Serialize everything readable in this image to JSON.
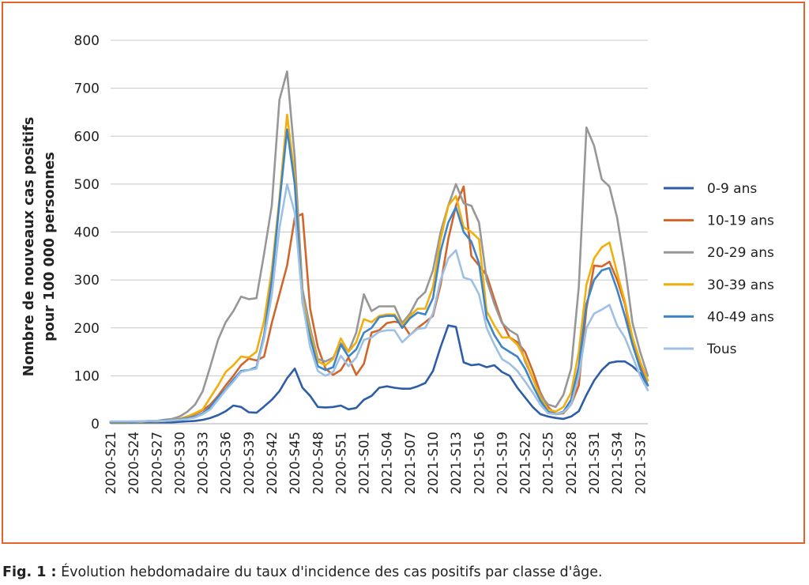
{
  "caption": {
    "label": "Fig. 1 :",
    "text": " Évolution hebdomadaire du taux d'incidence des cas positifs par classe d'âge."
  },
  "chart_data": {
    "type": "line",
    "title": "",
    "ylabel_line1": "Nombre de nouveaux cas positifs",
    "ylabel_line2": "pour 100 000 personnes",
    "xlabel": "",
    "ylim": [
      0,
      800
    ],
    "yticks": [
      0,
      100,
      200,
      300,
      400,
      500,
      600,
      700,
      800
    ],
    "grid": "horizontal",
    "legend_position": "right",
    "x": [
      "2020-S21",
      "2020-S22",
      "2020-S23",
      "2020-S24",
      "2020-S25",
      "2020-S26",
      "2020-S27",
      "2020-S28",
      "2020-S29",
      "2020-S30",
      "2020-S31",
      "2020-S32",
      "2020-S33",
      "2020-S34",
      "2020-S35",
      "2020-S36",
      "2020-S37",
      "2020-S38",
      "2020-S39",
      "2020-S40",
      "2020-S41",
      "2020-S42",
      "2020-S43",
      "2020-S44",
      "2020-S45",
      "2020-S46",
      "2020-S47",
      "2020-S48",
      "2020-S49",
      "2020-S50",
      "2020-S51",
      "2020-S52",
      "2020-S53",
      "2021-S01",
      "2021-S02",
      "2021-S03",
      "2021-S04",
      "2021-S05",
      "2021-S06",
      "2021-S07",
      "2021-S08",
      "2021-S09",
      "2021-S10",
      "2021-S11",
      "2021-S12",
      "2021-S13",
      "2021-S14",
      "2021-S15",
      "2021-S16",
      "2021-S17",
      "2021-S18",
      "2021-S19",
      "2021-S20",
      "2021-S21",
      "2021-S22",
      "2021-S23",
      "2021-S24",
      "2021-S25",
      "2021-S26",
      "2021-S27",
      "2021-S28",
      "2021-S29",
      "2021-S30",
      "2021-S31",
      "2021-S32",
      "2021-S33",
      "2021-S34",
      "2021-S35",
      "2021-S36",
      "2021-S37",
      "2021-S38"
    ],
    "xtick_labels": [
      "2020-S21",
      "2020-S24",
      "2020-S27",
      "2020-S30",
      "2020-S33",
      "2020-S36",
      "2020-S39",
      "2020-S42",
      "2020-S45",
      "2020-S48",
      "2020-S51",
      "2021-S01",
      "2021-S04",
      "2021-S07",
      "2021-S10",
      "2021-S13",
      "2021-S16",
      "2021-S19",
      "2021-S22",
      "2021-S25",
      "2021-S28",
      "2021-S31",
      "2021-S34",
      "2021-S37"
    ],
    "series": [
      {
        "name": "0-9 ans",
        "color": "#2e5da8",
        "values": [
          2,
          2,
          2,
          3,
          3,
          3,
          3,
          3,
          3,
          4,
          5,
          6,
          8,
          12,
          18,
          26,
          38,
          35,
          24,
          23,
          36,
          50,
          68,
          95,
          115,
          75,
          58,
          35,
          34,
          35,
          38,
          30,
          33,
          50,
          58,
          75,
          78,
          75,
          73,
          73,
          78,
          85,
          110,
          160,
          205,
          202,
          128,
          122,
          124,
          118,
          122,
          108,
          100,
          75,
          55,
          35,
          20,
          15,
          12,
          10,
          15,
          26,
          60,
          90,
          112,
          127,
          130,
          130,
          120,
          105,
          80
        ]
      },
      {
        "name": "10-19 ans",
        "color": "#d2662a",
        "values": [
          3,
          3,
          3,
          4,
          4,
          5,
          5,
          6,
          7,
          10,
          15,
          20,
          28,
          40,
          58,
          80,
          100,
          122,
          136,
          132,
          140,
          210,
          270,
          330,
          430,
          438,
          240,
          160,
          115,
          102,
          112,
          138,
          102,
          125,
          190,
          195,
          210,
          213,
          210,
          185,
          200,
          212,
          225,
          290,
          385,
          455,
          495,
          350,
          330,
          310,
          260,
          212,
          180,
          170,
          150,
          110,
          65,
          35,
          20,
          22,
          40,
          80,
          240,
          330,
          328,
          338,
          300,
          250,
          170,
          120,
          80
        ]
      },
      {
        "name": "20-29 ans",
        "color": "#979797",
        "values": [
          4,
          4,
          4,
          5,
          5,
          6,
          6,
          8,
          10,
          15,
          25,
          40,
          68,
          120,
          175,
          212,
          235,
          265,
          260,
          262,
          355,
          455,
          676,
          735,
          555,
          280,
          200,
          135,
          130,
          138,
          168,
          150,
          190,
          270,
          235,
          245,
          245,
          245,
          210,
          230,
          260,
          275,
          320,
          400,
          455,
          500,
          460,
          455,
          420,
          300,
          250,
          210,
          195,
          185,
          130,
          95,
          60,
          40,
          35,
          60,
          115,
          285,
          618,
          580,
          510,
          495,
          430,
          330,
          210,
          150,
          100
        ]
      },
      {
        "name": "30-39 ans",
        "color": "#f1ae0c",
        "values": [
          3,
          3,
          3,
          4,
          4,
          5,
          5,
          6,
          7,
          10,
          15,
          22,
          30,
          55,
          80,
          108,
          122,
          140,
          138,
          150,
          215,
          320,
          470,
          645,
          515,
          260,
          190,
          130,
          122,
          135,
          178,
          150,
          170,
          218,
          212,
          225,
          228,
          228,
          205,
          225,
          240,
          240,
          285,
          385,
          455,
          475,
          410,
          400,
          385,
          235,
          205,
          180,
          180,
          165,
          135,
          95,
          55,
          30,
          25,
          35,
          65,
          150,
          290,
          345,
          368,
          378,
          315,
          255,
          180,
          130,
          90
        ]
      },
      {
        "name": "40-49 ans",
        "color": "#3d85c6",
        "values": [
          4,
          4,
          4,
          4,
          5,
          5,
          6,
          7,
          7,
          9,
          12,
          15,
          22,
          35,
          55,
          72,
          92,
          110,
          112,
          118,
          185,
          300,
          460,
          614,
          500,
          252,
          180,
          120,
          112,
          118,
          165,
          140,
          155,
          190,
          200,
          222,
          225,
          225,
          200,
          220,
          232,
          228,
          262,
          360,
          420,
          452,
          400,
          380,
          335,
          220,
          185,
          160,
          150,
          140,
          115,
          80,
          48,
          25,
          20,
          25,
          50,
          120,
          250,
          300,
          320,
          325,
          280,
          225,
          165,
          115,
          80
        ]
      },
      {
        "name": "Tous",
        "color": "#9dc0e4",
        "values": [
          5,
          5,
          5,
          5,
          5,
          6,
          6,
          6,
          7,
          8,
          10,
          13,
          20,
          30,
          50,
          70,
          88,
          108,
          112,
          115,
          178,
          268,
          408,
          500,
          440,
          255,
          160,
          110,
          100,
          108,
          142,
          120,
          138,
          175,
          180,
          192,
          195,
          195,
          170,
          185,
          198,
          200,
          230,
          300,
          345,
          362,
          305,
          300,
          270,
          200,
          165,
          135,
          125,
          110,
          88,
          65,
          40,
          22,
          20,
          24,
          40,
          100,
          200,
          230,
          238,
          248,
          205,
          180,
          140,
          100,
          70
        ]
      }
    ]
  }
}
